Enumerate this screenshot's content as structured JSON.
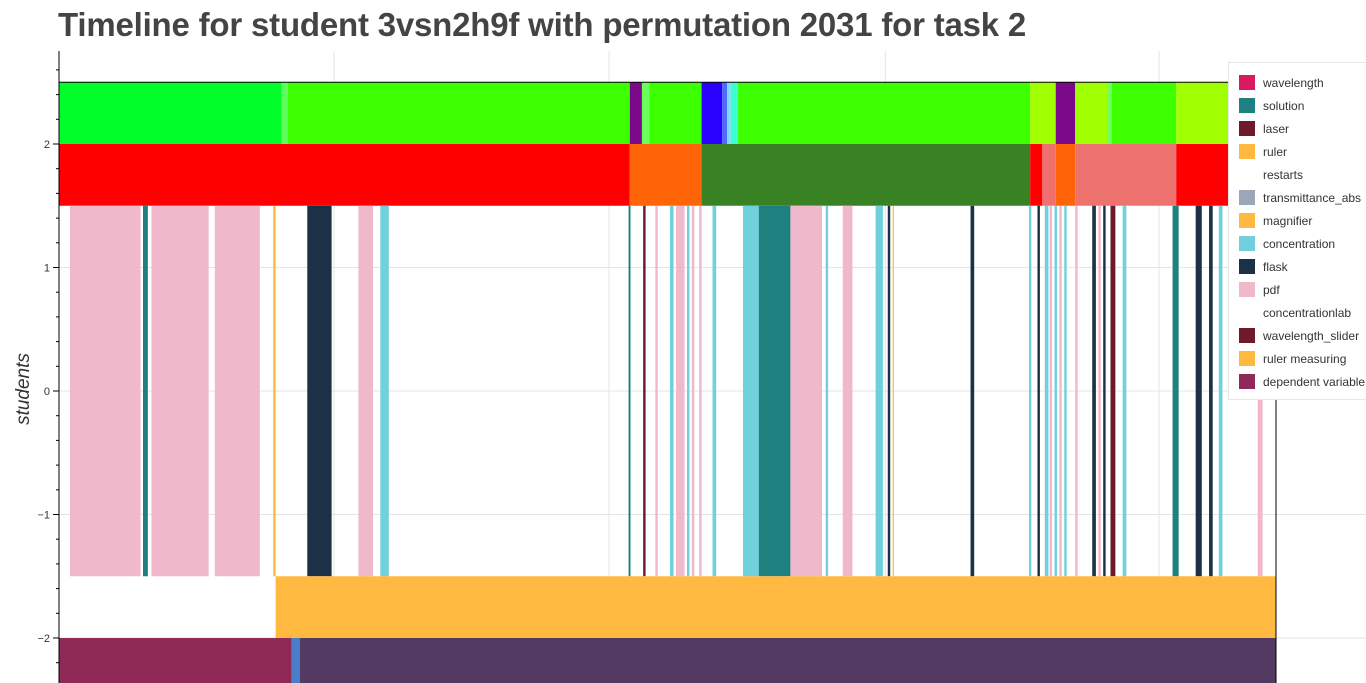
{
  "title": "Timeline for student 3vsn2h9f with permutation 2031 for task 2",
  "chart_data": {
    "type": "timeline",
    "title": "Timeline for student 3vsn2h9f with permutation 2031 for task 2",
    "ylabel": "students",
    "xlabel": "",
    "xlim": [
      0,
      1000
    ],
    "ylim": [
      -2.37,
      2.74
    ],
    "y_ticks": [
      2,
      1,
      0,
      -1,
      -2
    ],
    "y_tick_labels": [
      "2",
      "1",
      "0",
      "−1",
      "−2"
    ],
    "x_grid": [
      226,
      452,
      679,
      904
    ],
    "grid": true,
    "legend_position": "top-right",
    "legend": [
      {
        "label": "wavelength",
        "color": "#d81b60"
      },
      {
        "label": "solution",
        "color": "#1f8080"
      },
      {
        "label": "laser",
        "color": "#6d1a2e"
      },
      {
        "label": "ruler",
        "color": "#ffb940"
      },
      {
        "label": "restarts",
        "color": "#ffffff"
      },
      {
        "label": "transmittance_abs",
        "color": "#9aa7b8"
      },
      {
        "label": "magnifier",
        "color": "#ffb940"
      },
      {
        "label": "concentration",
        "color": "#70d0dc"
      },
      {
        "label": "flask",
        "color": "#1c3046"
      },
      {
        "label": "pdf",
        "color": "#f0b8cb"
      },
      {
        "label": "concentrationlab",
        "color": "#ffffff"
      },
      {
        "label": "wavelength_slider",
        "color": "#6d1a2e"
      },
      {
        "label": "ruler measuring",
        "color": "#ffb940"
      },
      {
        "label": "dependent variable",
        "color": "#8e2a55"
      }
    ],
    "rows": [
      {
        "y0": 2.0,
        "y1": 2.5,
        "segments": [
          {
            "x0": 0,
            "x1": 183,
            "color": "#00ff2a"
          },
          {
            "x0": 183,
            "x1": 188,
            "color": "#5cff5c"
          },
          {
            "x0": 188,
            "x1": 469,
            "color": "#3cff00"
          },
          {
            "x0": 469,
            "x1": 479,
            "color": "#7a0a8a"
          },
          {
            "x0": 479,
            "x1": 485,
            "color": "#6bff5a"
          },
          {
            "x0": 485,
            "x1": 528,
            "color": "#3cff00"
          },
          {
            "x0": 528,
            "x1": 545,
            "color": "#2a00ff"
          },
          {
            "x0": 545,
            "x1": 549,
            "color": "#4b6bff"
          },
          {
            "x0": 549,
            "x1": 552,
            "color": "#7fd9ff"
          },
          {
            "x0": 552,
            "x1": 558,
            "color": "#3cffd0"
          },
          {
            "x0": 558,
            "x1": 798,
            "color": "#3cff00"
          },
          {
            "x0": 798,
            "x1": 819,
            "color": "#a0ff00"
          },
          {
            "x0": 819,
            "x1": 835,
            "color": "#7a0a8a"
          },
          {
            "x0": 835,
            "x1": 862,
            "color": "#a0ff00"
          },
          {
            "x0": 862,
            "x1": 865,
            "color": "#6bff5a"
          },
          {
            "x0": 865,
            "x1": 918,
            "color": "#3cff00"
          },
          {
            "x0": 918,
            "x1": 1000,
            "color": "#a0ff00"
          }
        ]
      },
      {
        "y0": 1.5,
        "y1": 2.0,
        "segments": [
          {
            "x0": 0,
            "x1": 469,
            "color": "#ff0000"
          },
          {
            "x0": 469,
            "x1": 528,
            "color": "#ff6408"
          },
          {
            "x0": 528,
            "x1": 798,
            "color": "#388224"
          },
          {
            "x0": 798,
            "x1": 808,
            "color": "#ff0000"
          },
          {
            "x0": 808,
            "x1": 819,
            "color": "#f07070"
          },
          {
            "x0": 819,
            "x1": 835,
            "color": "#ff6408"
          },
          {
            "x0": 835,
            "x1": 918,
            "color": "#ee726e"
          },
          {
            "x0": 918,
            "x1": 1000,
            "color": "#ff0000"
          }
        ]
      },
      {
        "y0": -1.5,
        "y1": 1.5,
        "segments": [
          {
            "x0": 9,
            "x1": 67,
            "color": "#f0b8cb"
          },
          {
            "x0": 69,
            "x1": 73,
            "color": "#1f8080"
          },
          {
            "x0": 76,
            "x1": 123,
            "color": "#f0b8cb"
          },
          {
            "x0": 128,
            "x1": 165,
            "color": "#f0b8cb"
          },
          {
            "x0": 176,
            "x1": 178,
            "color": "#ffb940"
          },
          {
            "x0": 204,
            "x1": 224,
            "color": "#1c3046"
          },
          {
            "x0": 246,
            "x1": 258,
            "color": "#f0b8cb"
          },
          {
            "x0": 264,
            "x1": 271,
            "color": "#70d0dc"
          },
          {
            "x0": 468,
            "x1": 469.6,
            "color": "#1f8080"
          },
          {
            "x0": 480,
            "x1": 482,
            "color": "#6d1a2e"
          },
          {
            "x0": 490,
            "x1": 492,
            "color": "#f0b8cb"
          },
          {
            "x0": 502,
            "x1": 505,
            "color": "#70d0dc"
          },
          {
            "x0": 507,
            "x1": 514,
            "color": "#f0b8cb"
          },
          {
            "x0": 516,
            "x1": 518,
            "color": "#70d0dc"
          },
          {
            "x0": 520,
            "x1": 522,
            "color": "#f0b8cb"
          },
          {
            "x0": 526,
            "x1": 528,
            "color": "#f0b8cb"
          },
          {
            "x0": 537,
            "x1": 540,
            "color": "#70d0dc"
          },
          {
            "x0": 562,
            "x1": 575,
            "color": "#70d0dc"
          },
          {
            "x0": 575,
            "x1": 601,
            "color": "#1f8080"
          },
          {
            "x0": 601,
            "x1": 627,
            "color": "#f0b8cb"
          },
          {
            "x0": 630,
            "x1": 632,
            "color": "#70d0dc"
          },
          {
            "x0": 644,
            "x1": 652,
            "color": "#f0b8cb"
          },
          {
            "x0": 671,
            "x1": 677,
            "color": "#70d0dc"
          },
          {
            "x0": 681,
            "x1": 683,
            "color": "#1c3046"
          },
          {
            "x0": 685,
            "x1": 686,
            "color": "#ffb940"
          },
          {
            "x0": 749,
            "x1": 752,
            "color": "#1c3046"
          },
          {
            "x0": 797,
            "x1": 799,
            "color": "#70d0dc"
          },
          {
            "x0": 804,
            "x1": 806,
            "color": "#1c3046"
          },
          {
            "x0": 810,
            "x1": 813,
            "color": "#70d0dc"
          },
          {
            "x0": 814,
            "x1": 816,
            "color": "#f0b8cb"
          },
          {
            "x0": 818,
            "x1": 820,
            "color": "#70d0dc"
          },
          {
            "x0": 822,
            "x1": 824,
            "color": "#f0b8cb"
          },
          {
            "x0": 826,
            "x1": 828,
            "color": "#70d0dc"
          },
          {
            "x0": 835,
            "x1": 837,
            "color": "#f0b8cb"
          },
          {
            "x0": 849,
            "x1": 852,
            "color": "#1c3046"
          },
          {
            "x0": 854,
            "x1": 856,
            "color": "#f0b8cb"
          },
          {
            "x0": 858,
            "x1": 860,
            "color": "#1c3046"
          },
          {
            "x0": 864,
            "x1": 868,
            "color": "#6d1a2e"
          },
          {
            "x0": 874,
            "x1": 877,
            "color": "#70d0dc"
          },
          {
            "x0": 915,
            "x1": 920,
            "color": "#1f8080"
          },
          {
            "x0": 934,
            "x1": 939,
            "color": "#1c3046"
          },
          {
            "x0": 945,
            "x1": 948,
            "color": "#1c3046"
          },
          {
            "x0": 953,
            "x1": 956,
            "color": "#70d0dc"
          },
          {
            "x0": 985,
            "x1": 989,
            "color": "#f0b8cb"
          }
        ]
      },
      {
        "y0": -2.0,
        "y1": -1.5,
        "segments": [
          {
            "x0": 178,
            "x1": 1000,
            "color": "#ffb940"
          }
        ]
      },
      {
        "y0": -2.37,
        "y1": -2.0,
        "segments": [
          {
            "x0": 0,
            "x1": 191,
            "color": "#8e2a55"
          },
          {
            "x0": 191,
            "x1": 198,
            "color": "#4a7cc8"
          },
          {
            "x0": 198,
            "x1": 1000,
            "color": "#523a62"
          }
        ]
      }
    ]
  }
}
